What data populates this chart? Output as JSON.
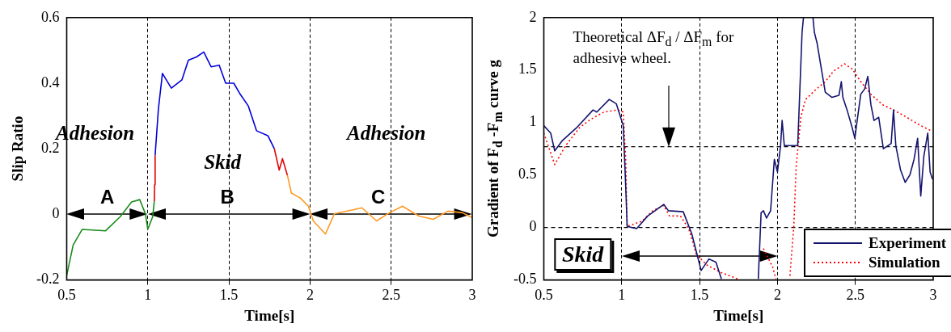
{
  "chart_data": [
    {
      "type": "line",
      "xlabel": "Time[s]",
      "ylabel": "Slip Ratio",
      "xlim": [
        0.5,
        3
      ],
      "ylim": [
        -0.2,
        0.6
      ],
      "xticks": [
        0.5,
        1,
        1.5,
        2,
        2.5,
        3
      ],
      "yticks": [
        -0.2,
        0,
        0.2,
        0.4,
        0.6
      ],
      "grid": "x",
      "legend": false,
      "marker": "none",
      "line_style": "solid",
      "annotations": [
        "Adhesion",
        "Skid",
        "Adhesion",
        "A",
        "B",
        "C"
      ],
      "series": [
        {
          "color": "#1a8a1a",
          "x": [
            0.5,
            0.54,
            0.595,
            0.74,
            0.83,
            0.9,
            0.95,
            0.985,
            1.0,
            1.03,
            1.04
          ],
          "values": [
            -0.186,
            -0.093,
            -0.046,
            -0.05,
            -0.007,
            0.038,
            0.045,
            0.002,
            -0.045,
            -0.007,
            0.04
          ]
        },
        {
          "color": "#e00000",
          "x": [
            1.04,
            1.042,
            1.045
          ],
          "values": [
            0.04,
            0.09,
            0.18
          ]
        },
        {
          "color": "#0000dd",
          "x": [
            1.045,
            1.065,
            1.09,
            1.145,
            1.21,
            1.25,
            1.3,
            1.345,
            1.39,
            1.44,
            1.48,
            1.53,
            1.565,
            1.62,
            1.67,
            1.74,
            1.78
          ],
          "values": [
            0.18,
            0.32,
            0.43,
            0.385,
            0.41,
            0.47,
            0.48,
            0.495,
            0.45,
            0.455,
            0.4,
            0.4,
            0.37,
            0.33,
            0.255,
            0.24,
            0.2
          ]
        },
        {
          "color": "#e00000",
          "x": [
            1.78,
            1.81,
            1.83,
            1.86
          ],
          "values": [
            0.2,
            0.135,
            0.17,
            0.12
          ]
        },
        {
          "color": "#ff9922",
          "x": [
            1.86,
            1.885,
            1.94,
            1.99,
            2.02,
            2.095,
            2.15,
            2.23,
            2.32,
            2.41,
            2.49,
            2.57,
            2.67,
            2.76,
            2.85,
            2.94,
            3.0
          ],
          "values": [
            0.12,
            0.065,
            0.05,
            0.025,
            -0.02,
            -0.06,
            0.002,
            0.01,
            0.02,
            -0.02,
            0.005,
            0.025,
            -0.005,
            -0.015,
            0.01,
            0.005,
            -0.01
          ]
        }
      ]
    },
    {
      "type": "line",
      "xlabel": "Time[s]",
      "ylabel": "Gradient of F$_{d}$ -F$_{m}$ curve g",
      "xlim": [
        0.5,
        3
      ],
      "ylim": [
        -0.5,
        2
      ],
      "xticks": [
        0.5,
        1,
        1.5,
        2,
        2.5,
        3
      ],
      "yticks": [
        -0.5,
        0,
        0.5,
        1,
        1.5,
        2
      ],
      "grid": "x",
      "legend": "bottom right",
      "marker": "none",
      "ref_lines": [
        {
          "axis": "y",
          "value": 0,
          "color": "#000000",
          "line_style": "dashed"
        },
        {
          "axis": "y",
          "value": 0.77,
          "color": "#000000",
          "line_style": "dashed"
        }
      ],
      "annotations": [
        "Theoretical ΔF$_{d}$ / ΔF$_{m}$ for adhesive wheel.",
        "Skid"
      ],
      "series": [
        {
          "name": "Experiment",
          "color": "#14146e",
          "line_style": "solid",
          "x": [
            0.5,
            0.544,
            0.57,
            0.62,
            0.71,
            0.816,
            0.84,
            0.92,
            0.965,
            1.01,
            1.026,
            1.035,
            1.096,
            1.167,
            1.27,
            1.3,
            1.395,
            1.45,
            1.51,
            1.56,
            1.605,
            1.64,
            1.76,
            1.877,
            1.895,
            1.91,
            1.93,
            1.956,
            1.98,
            2.0,
            2.02,
            2.03,
            2.044,
            2.097,
            2.13,
            2.158,
            2.167,
            2.2,
            2.228,
            2.237,
            2.254,
            2.29,
            2.307,
            2.35,
            2.395,
            2.41,
            2.42,
            2.447,
            2.48,
            2.497,
            2.51,
            2.535,
            2.56,
            2.58,
            2.6,
            2.62,
            2.65,
            2.68,
            2.73,
            2.745,
            2.76,
            2.79,
            2.82,
            2.85,
            2.877,
            2.9,
            2.92,
            2.94,
            2.965,
            2.98,
            2.995
          ],
          "values": [
            0.97,
            0.9,
            0.73,
            0.83,
            0.95,
            1.12,
            1.1,
            1.22,
            1.18,
            0.97,
            0.38,
            0.01,
            -0.01,
            0.11,
            0.22,
            0.16,
            0.15,
            -0.06,
            -0.41,
            -0.3,
            -0.33,
            -0.49,
            null,
            -0.49,
            0.14,
            0.16,
            0.09,
            0.16,
            0.65,
            0.53,
            0.78,
            1.02,
            0.78,
            0.78,
            0.78,
            1.86,
            2.0,
            null,
            2.0,
            1.86,
            1.76,
            1.44,
            1.29,
            1.24,
            1.26,
            1.39,
            1.24,
            1.12,
            0.95,
            0.85,
            1.0,
            1.27,
            1.32,
            1.44,
            1.17,
            1.02,
            1.05,
            0.75,
            0.8,
            1.12,
            0.78,
            0.55,
            0.43,
            0.5,
            0.65,
            0.85,
            0.3,
            0.68,
            0.9,
            0.53,
            0.46
          ]
        },
        {
          "name": "Simulation",
          "color": "#ff0000",
          "line_style": "dotted",
          "x": [
            0.5,
            0.57,
            0.64,
            0.728,
            0.8,
            0.886,
            0.974,
            1.01,
            1.026,
            1.035,
            1.13,
            1.2,
            1.27,
            1.307,
            1.377,
            1.43,
            1.48,
            1.55,
            1.64,
            1.745,
            1.83,
            1.91,
            1.97,
            1.99,
            2.04,
            2.08,
            2.105,
            2.12,
            2.15,
            2.18,
            2.25,
            2.307,
            2.36,
            2.43,
            2.48,
            2.535,
            2.6,
            2.675,
            2.745,
            2.83,
            2.92,
            2.99
          ],
          "values": [
            0.9,
            0.6,
            0.78,
            0.95,
            1.03,
            1.1,
            1.12,
            1.1,
            0.63,
            0.01,
            0.06,
            0.16,
            0.21,
            0.11,
            0.11,
            -0.01,
            -0.26,
            -0.36,
            -0.43,
            -0.49,
            null,
            -0.2,
            -0.38,
            -0.49,
            null,
            -0.46,
            0.01,
            0.58,
            1.05,
            1.22,
            1.32,
            1.39,
            1.49,
            1.56,
            1.51,
            1.39,
            1.27,
            1.17,
            1.12,
            1.05,
            0.97,
            0.92
          ]
        }
      ]
    }
  ]
}
